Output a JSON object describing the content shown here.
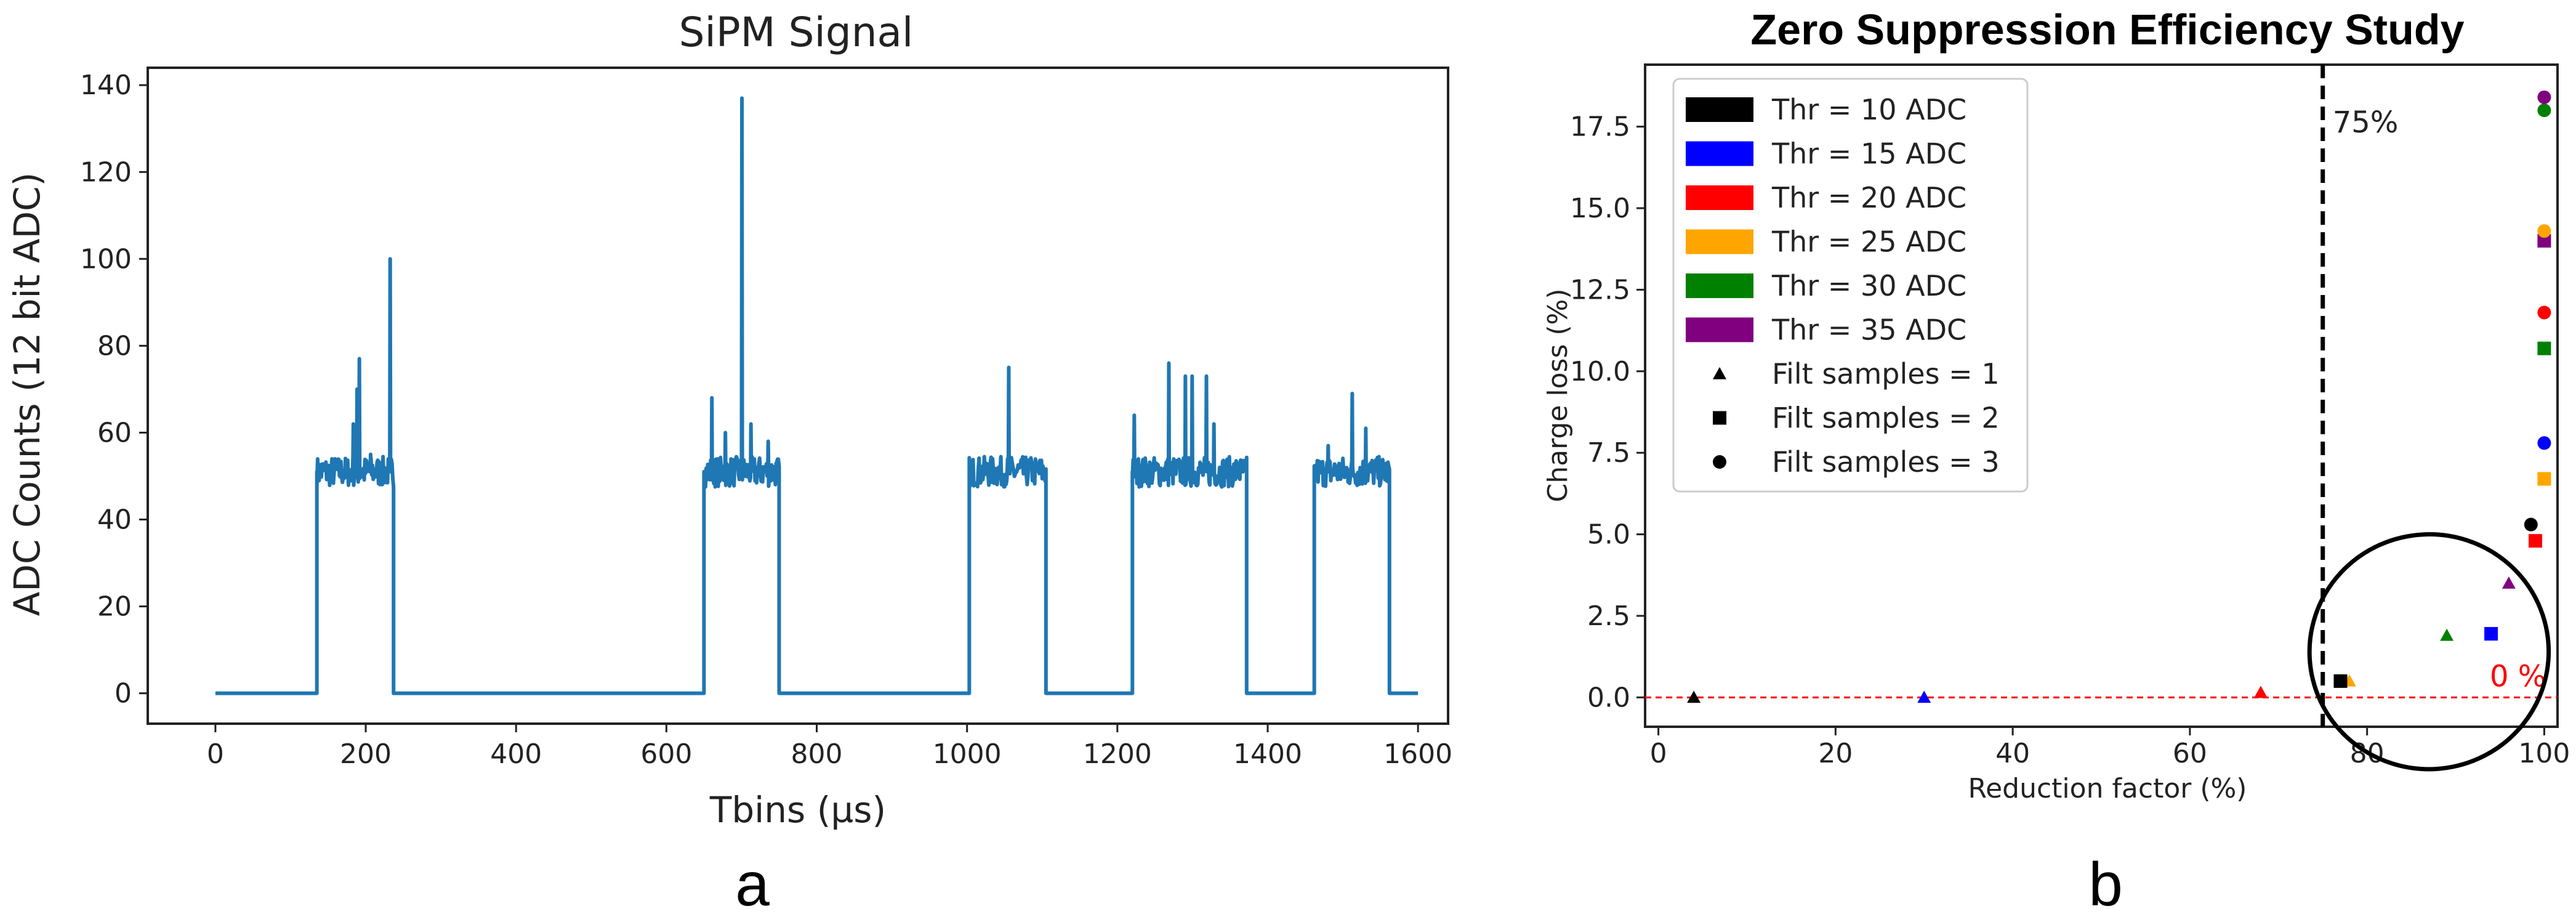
{
  "colors": {
    "signal": "#1f77b4",
    "zero_line": "#ff0000",
    "threshold_line": "#000000",
    "thr10": "#000000",
    "thr15": "#0000ff",
    "thr20": "#ff0000",
    "thr25": "#ffa500",
    "thr30": "#008000",
    "thr35": "#800080"
  },
  "panel_labels": [
    "a",
    "b"
  ],
  "chart_data": [
    {
      "type": "line",
      "title": "SiPM Signal",
      "xlabel": "Tbins (µs)",
      "ylabel": "ADC Counts (12 bit ADC)",
      "xlim": [
        -90,
        1640
      ],
      "ylim": [
        -7,
        144
      ],
      "xticks": [
        0,
        200,
        400,
        600,
        800,
        1000,
        1200,
        1400,
        1600
      ],
      "yticks": [
        0,
        20,
        40,
        60,
        80,
        100,
        120,
        140
      ],
      "grid": false,
      "baseline": 51,
      "pulses": [
        {
          "start": 135,
          "end": 237,
          "spikes": [
            [
              183,
              62
            ],
            [
              188,
              70
            ],
            [
              191,
              77
            ],
            [
              206,
              55
            ],
            [
              232,
              100
            ]
          ]
        },
        {
          "start": 650,
          "end": 750,
          "spikes": [
            [
              660,
              68
            ],
            [
              678,
              60
            ],
            [
              700,
              137
            ],
            [
              712,
              62
            ],
            [
              735,
              58
            ]
          ]
        },
        {
          "start": 1003,
          "end": 1105,
          "spikes": [
            [
              1055,
              75
            ]
          ]
        },
        {
          "start": 1220,
          "end": 1372,
          "spikes": [
            [
              1222,
              64
            ],
            [
              1268,
              76
            ],
            [
              1290,
              73
            ],
            [
              1299,
              73
            ],
            [
              1318,
              73
            ],
            [
              1328,
              62
            ]
          ]
        },
        {
          "start": 1462,
          "end": 1562,
          "spikes": [
            [
              1480,
              57
            ],
            [
              1512,
              69
            ],
            [
              1530,
              61
            ]
          ]
        }
      ]
    },
    {
      "type": "scatter",
      "title": "Zero Suppression Efficiency Study",
      "xlabel": "Reduction factor (%)",
      "ylabel": "Charge loss (%)",
      "xlim": [
        -1.5,
        101.5
      ],
      "ylim": [
        -0.9,
        19.4
      ],
      "xticks": [
        0,
        20,
        40,
        60,
        80,
        100
      ],
      "yticks": [
        0.0,
        2.5,
        5.0,
        7.5,
        10.0,
        12.5,
        15.0,
        17.5
      ],
      "ytick_labels": [
        "0.0",
        "2.5",
        "5.0",
        "7.5",
        "10.0",
        "12.5",
        "15.0",
        "17.5"
      ],
      "threshold_line_x": 75,
      "threshold_label": "75%",
      "zero_label": "0 %",
      "legend_position": "upper-left",
      "legend": [
        {
          "label": "Thr = 10 ADC",
          "kind": "patch",
          "color": "#000000"
        },
        {
          "label": "Thr = 15 ADC",
          "kind": "patch",
          "color": "#0000ff"
        },
        {
          "label": "Thr = 20 ADC",
          "kind": "patch",
          "color": "#ff0000"
        },
        {
          "label": "Thr = 25 ADC",
          "kind": "patch",
          "color": "#ffa500"
        },
        {
          "label": "Thr = 30 ADC",
          "kind": "patch",
          "color": "#008000"
        },
        {
          "label": "Thr = 35 ADC",
          "kind": "patch",
          "color": "#800080"
        },
        {
          "label": "Filt samples = 1",
          "kind": "marker",
          "marker": "triangle"
        },
        {
          "label": "Filt samples = 2",
          "kind": "marker",
          "marker": "square"
        },
        {
          "label": "Filt samples = 3",
          "kind": "marker",
          "marker": "circle"
        }
      ],
      "points": [
        {
          "thr": 10,
          "filt": 1,
          "x": 4,
          "y": 0.0
        },
        {
          "thr": 15,
          "filt": 1,
          "x": 30,
          "y": 0.0
        },
        {
          "thr": 20,
          "filt": 1,
          "x": 68,
          "y": 0.15
        },
        {
          "thr": 25,
          "filt": 1,
          "x": 78,
          "y": 0.5
        },
        {
          "thr": 30,
          "filt": 1,
          "x": 89,
          "y": 1.9
        },
        {
          "thr": 35,
          "filt": 1,
          "x": 96,
          "y": 3.5
        },
        {
          "thr": 10,
          "filt": 2,
          "x": 77,
          "y": 0.5
        },
        {
          "thr": 15,
          "filt": 2,
          "x": 94,
          "y": 1.95
        },
        {
          "thr": 20,
          "filt": 2,
          "x": 99,
          "y": 4.8
        },
        {
          "thr": 25,
          "filt": 2,
          "x": 100,
          "y": 6.7
        },
        {
          "thr": 30,
          "filt": 2,
          "x": 100,
          "y": 10.7
        },
        {
          "thr": 35,
          "filt": 2,
          "x": 100,
          "y": 14.0
        },
        {
          "thr": 10,
          "filt": 3,
          "x": 98.5,
          "y": 5.3
        },
        {
          "thr": 15,
          "filt": 3,
          "x": 100,
          "y": 7.8
        },
        {
          "thr": 20,
          "filt": 3,
          "x": 100,
          "y": 11.8
        },
        {
          "thr": 25,
          "filt": 3,
          "x": 100,
          "y": 14.3
        },
        {
          "thr": 30,
          "filt": 3,
          "x": 100,
          "y": 18.0
        },
        {
          "thr": 35,
          "filt": 3,
          "x": 100,
          "y": 18.4
        }
      ],
      "highlight_ellipse": {
        "cx": 87,
        "cy": 1.4,
        "rx": 13.5,
        "ry": 3.6
      }
    }
  ]
}
